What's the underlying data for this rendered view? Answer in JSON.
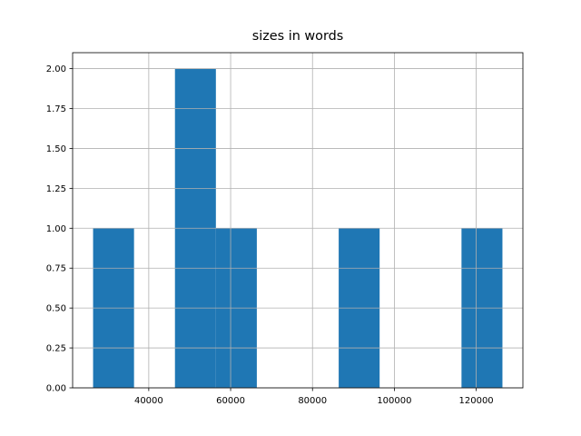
{
  "chart_data": {
    "type": "histogram",
    "title": "sizes in words",
    "bins": [
      26400,
      36400,
      46400,
      56400,
      66400,
      76400,
      86400,
      96400,
      106400,
      116400,
      126400
    ],
    "values": [
      1,
      0,
      2,
      1,
      0,
      0,
      1,
      0,
      0,
      1
    ],
    "color": "#1f77b4",
    "xlim": [
      21400,
      131400
    ],
    "xticks": [
      40000,
      60000,
      80000,
      100000,
      120000
    ],
    "ylim": [
      0,
      2.1
    ],
    "yticks": [
      {
        "value": 0,
        "label": "0.00"
      },
      {
        "value": 0.25,
        "label": "0.25"
      },
      {
        "value": 0.5,
        "label": "0.50"
      },
      {
        "value": 0.75,
        "label": "0.75"
      },
      {
        "value": 1,
        "label": "1.00"
      },
      {
        "value": 1.25,
        "label": "1.25"
      },
      {
        "value": 1.5,
        "label": "1.50"
      },
      {
        "value": 1.75,
        "label": "1.75"
      },
      {
        "value": 2,
        "label": "2.00"
      }
    ],
    "grid": true
  }
}
